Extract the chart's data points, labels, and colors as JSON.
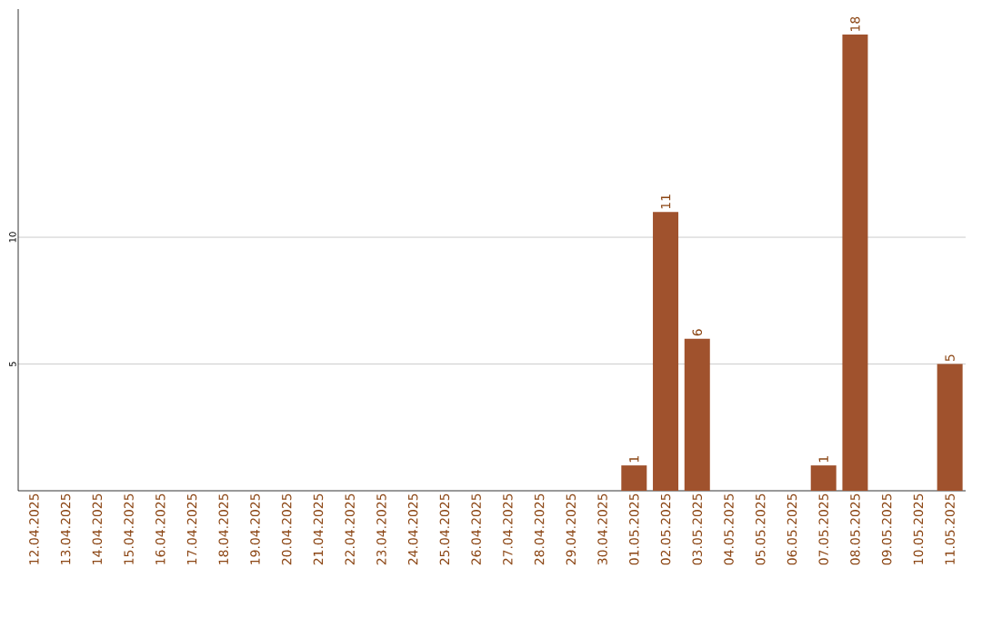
{
  "chart_data": {
    "type": "bar",
    "categories": [
      "12.04.2025",
      "13.04.2025",
      "14.04.2025",
      "15.04.2025",
      "16.04.2025",
      "17.04.2025",
      "18.04.2025",
      "19.04.2025",
      "20.04.2025",
      "21.04.2025",
      "22.04.2025",
      "23.04.2025",
      "24.04.2025",
      "25.04.2025",
      "26.04.2025",
      "27.04.2025",
      "28.04.2025",
      "29.04.2025",
      "30.04.2025",
      "01.05.2025",
      "02.05.2025",
      "03.05.2025",
      "04.05.2025",
      "05.05.2025",
      "06.05.2025",
      "07.05.2025",
      "08.05.2025",
      "09.05.2025",
      "10.05.2025",
      "11.05.2025"
    ],
    "values": [
      0,
      0,
      0,
      0,
      0,
      0,
      0,
      0,
      0,
      0,
      0,
      0,
      0,
      0,
      0,
      0,
      0,
      0,
      0,
      1,
      11,
      6,
      0,
      0,
      0,
      1,
      18,
      0,
      0,
      5
    ],
    "value_labels": [
      null,
      null,
      null,
      null,
      null,
      null,
      null,
      null,
      null,
      null,
      null,
      null,
      null,
      null,
      null,
      null,
      null,
      null,
      null,
      "1",
      "11",
      "6",
      null,
      null,
      null,
      "1",
      "18",
      null,
      null,
      "5"
    ],
    "color": "#a0522d",
    "ylim": [
      0,
      19
    ],
    "yticks": [
      5,
      10
    ],
    "grid": "y"
  }
}
